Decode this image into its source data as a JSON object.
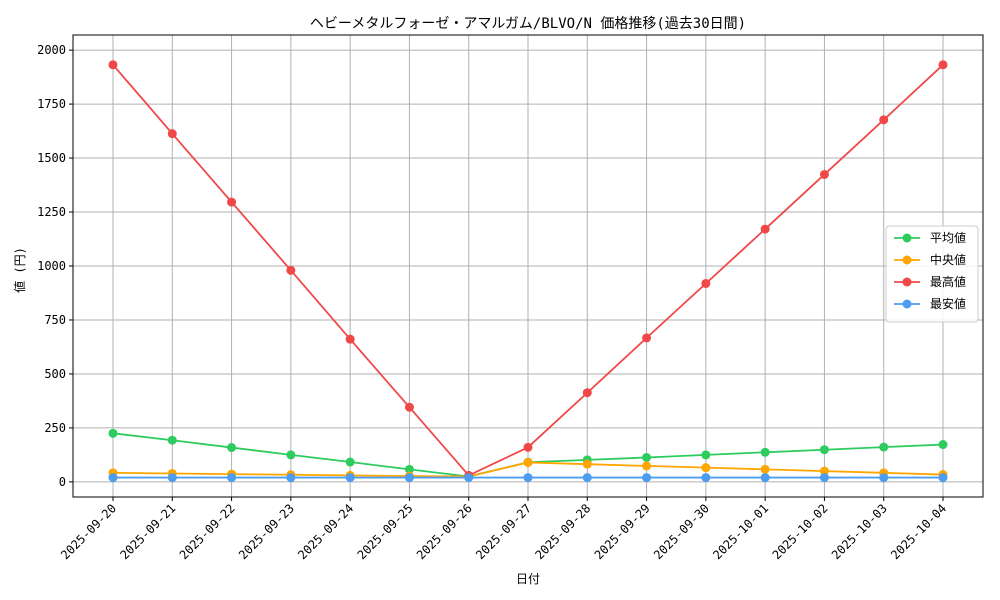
{
  "chart_data": {
    "type": "line",
    "title": "ヘビーメタルフォーゼ・アマルガム/BLVO/N 価格推移(過去30日間)",
    "xlabel": "日付",
    "ylabel": "値 (円)",
    "ylim": [
      -70,
      2070
    ],
    "yticks": [
      0,
      250,
      500,
      750,
      1000,
      1250,
      1500,
      1750,
      2000
    ],
    "grid": true,
    "legend_position": "center-right",
    "categories": [
      "2025-09-20",
      "2025-09-21",
      "2025-09-22",
      "2025-09-23",
      "2025-09-24",
      "2025-09-25",
      "2025-09-26",
      "2025-09-27",
      "2025-09-28",
      "2025-09-29",
      "2025-09-30",
      "2025-10-01",
      "2025-10-02",
      "2025-10-03",
      "2025-10-04"
    ],
    "series": [
      {
        "name": "平均値",
        "color": "#2ecc5e",
        "values": [
          225,
          193,
          159,
          125,
          92,
          58,
          25,
          91,
          102,
          113,
          125,
          137,
          149,
          161,
          173
        ]
      },
      {
        "name": "中央値",
        "color": "#ffa500",
        "values": [
          42,
          39,
          36,
          33,
          30,
          27,
          25,
          90,
          82,
          74,
          66,
          58,
          50,
          42,
          34
        ]
      },
      {
        "name": "最高値",
        "color": "#f04848",
        "values": [
          1932,
          1613,
          1296,
          980,
          661,
          346,
          30,
          160,
          413,
          667,
          919,
          1171,
          1424,
          1677,
          1932
        ]
      },
      {
        "name": "最安値",
        "color": "#4c9cf0",
        "values": [
          20,
          20,
          20,
          20,
          20,
          20,
          20,
          20,
          20,
          20,
          20,
          20,
          20,
          20,
          20
        ]
      }
    ]
  }
}
